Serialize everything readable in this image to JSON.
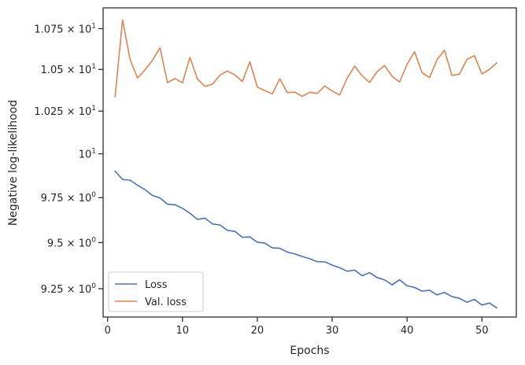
{
  "chart_data": {
    "type": "line",
    "title": "",
    "xlabel": "Epochs",
    "ylabel": "Negative log-likelihood",
    "yscale": "log",
    "xlim": [
      -0.6,
      54.6
    ],
    "ylim": [
      9.1,
      10.88
    ],
    "grid": false,
    "legend_position": "lower-left",
    "x_ticks": [
      {
        "value": 0,
        "label": "0"
      },
      {
        "value": 10,
        "label": "10"
      },
      {
        "value": 20,
        "label": "20"
      },
      {
        "value": 30,
        "label": "30"
      },
      {
        "value": 40,
        "label": "40"
      },
      {
        "value": 50,
        "label": "50"
      }
    ],
    "y_ticks": [
      {
        "value": 9.25,
        "mantissa": "9.25",
        "times": "×",
        "base": "10",
        "exp": "0"
      },
      {
        "value": 9.5,
        "mantissa": "9.5",
        "times": "×",
        "base": "10",
        "exp": "0"
      },
      {
        "value": 9.75,
        "mantissa": "9.75",
        "times": "×",
        "base": "10",
        "exp": "0"
      },
      {
        "value": 10.0,
        "mantissa": "",
        "times": "",
        "base": "10",
        "exp": "1"
      },
      {
        "value": 10.25,
        "mantissa": "1.025",
        "times": "×",
        "base": "10",
        "exp": "1"
      },
      {
        "value": 10.5,
        "mantissa": "1.05",
        "times": "×",
        "base": "10",
        "exp": "1"
      },
      {
        "value": 10.75,
        "mantissa": "1.075",
        "times": "×",
        "base": "10",
        "exp": "1"
      }
    ],
    "x": [
      1,
      2,
      3,
      4,
      5,
      6,
      7,
      8,
      9,
      10,
      11,
      12,
      13,
      14,
      15,
      16,
      17,
      18,
      19,
      20,
      21,
      22,
      23,
      24,
      25,
      26,
      27,
      28,
      29,
      30,
      31,
      32,
      33,
      34,
      35,
      36,
      37,
      38,
      39,
      40,
      41,
      42,
      43,
      44,
      45,
      46,
      47,
      48,
      49,
      50,
      51,
      52
    ],
    "series": [
      {
        "name": "Loss",
        "color": "#4c72b0",
        "values": [
          9.9,
          9.853,
          9.849,
          9.82,
          9.795,
          9.762,
          9.748,
          9.713,
          9.71,
          9.69,
          9.662,
          9.628,
          9.635,
          9.603,
          9.597,
          9.567,
          9.562,
          9.529,
          9.531,
          9.502,
          9.497,
          9.471,
          9.469,
          9.448,
          9.438,
          9.424,
          9.412,
          9.396,
          9.395,
          9.377,
          9.363,
          9.344,
          9.35,
          9.32,
          9.336,
          9.31,
          9.297,
          9.271,
          9.298,
          9.266,
          9.257,
          9.237,
          9.242,
          9.217,
          9.23,
          9.208,
          9.199,
          9.178,
          9.193,
          9.163,
          9.174,
          9.148
        ]
      },
      {
        "name": "Val. loss",
        "color": "#dd8452",
        "values": [
          10.335,
          10.805,
          10.56,
          10.448,
          10.497,
          10.556,
          10.632,
          10.42,
          10.445,
          10.419,
          10.573,
          10.442,
          10.398,
          10.41,
          10.465,
          10.49,
          10.467,
          10.426,
          10.547,
          10.393,
          10.372,
          10.352,
          10.443,
          10.36,
          10.363,
          10.338,
          10.362,
          10.355,
          10.4,
          10.37,
          10.346,
          10.447,
          10.52,
          10.461,
          10.421,
          10.486,
          10.524,
          10.458,
          10.424,
          10.53,
          10.608,
          10.48,
          10.45,
          10.559,
          10.617,
          10.463,
          10.471,
          10.561,
          10.584,
          10.472,
          10.5,
          10.54
        ]
      }
    ]
  }
}
